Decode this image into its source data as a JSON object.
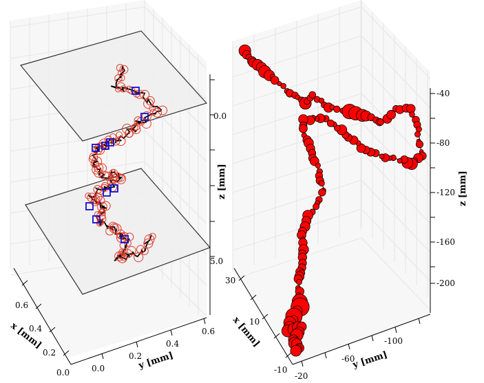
{
  "chart_data": [
    {
      "type": "scatter",
      "title": "",
      "axes": {
        "x": {
          "label": "x [mm]",
          "ticks": [
            "0.0",
            "0.2",
            "0.4",
            "0.6"
          ]
        },
        "y": {
          "label": "y [mm]",
          "ticks": [
            "0.0",
            "0.2",
            "0.4",
            "0.6"
          ]
        },
        "z": {
          "label": "z [mm]",
          "ticks": [
            "0.0",
            "5.0"
          ]
        }
      },
      "planes": 2,
      "series": [
        {
          "type": "line",
          "color": "#000000"
        },
        {
          "type": "scatter",
          "marker": "open-circle",
          "color": "#e03a2a"
        },
        {
          "type": "scatter",
          "marker": "open-square",
          "color": "#1010d0",
          "count": 10
        }
      ]
    },
    {
      "type": "scatter",
      "title": "",
      "axes": {
        "x": {
          "label": "x [mm]",
          "ticks": [
            "-10",
            "10",
            "30"
          ]
        },
        "y": {
          "label": "y [mm]",
          "ticks": [
            "-20",
            "-60",
            "-100"
          ]
        },
        "z": {
          "label": "z [mm]",
          "ticks": [
            "-40",
            "-80",
            "-120",
            "-160",
            "-200"
          ]
        }
      },
      "series": [
        {
          "type": "bubble",
          "color": "#ff0000",
          "edge": "#000000"
        }
      ]
    }
  ],
  "colors": {
    "bubble_fill": "#ff0000",
    "circle": "#e03a2a",
    "square": "#1010d0",
    "plane": "#f0f0f0"
  }
}
